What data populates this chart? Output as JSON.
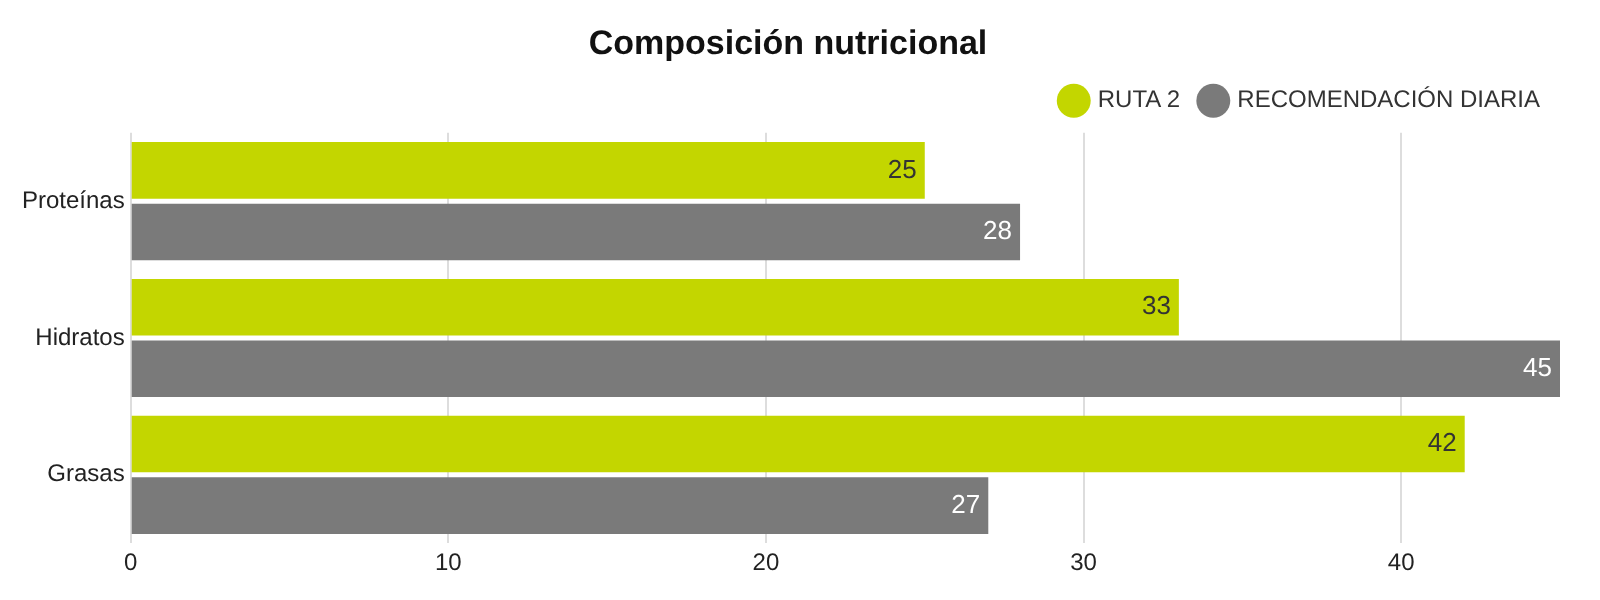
{
  "chart_data": {
    "type": "bar",
    "orientation": "horizontal",
    "title": "Composición nutricional",
    "categories": [
      "Proteínas",
      "Hidratos",
      "Grasas"
    ],
    "series": [
      {
        "name": "RUTA 2",
        "color": "#c3d600",
        "values": [
          25,
          33,
          42
        ]
      },
      {
        "name": "RECOMENDACIÓN DIARIA",
        "color": "#7a7a7a",
        "values": [
          28,
          45,
          27
        ]
      }
    ],
    "xlim": [
      0,
      45
    ],
    "xticks": [
      0,
      10,
      20,
      30,
      40
    ],
    "grid": "x",
    "legend": "top",
    "data_labels": true
  }
}
